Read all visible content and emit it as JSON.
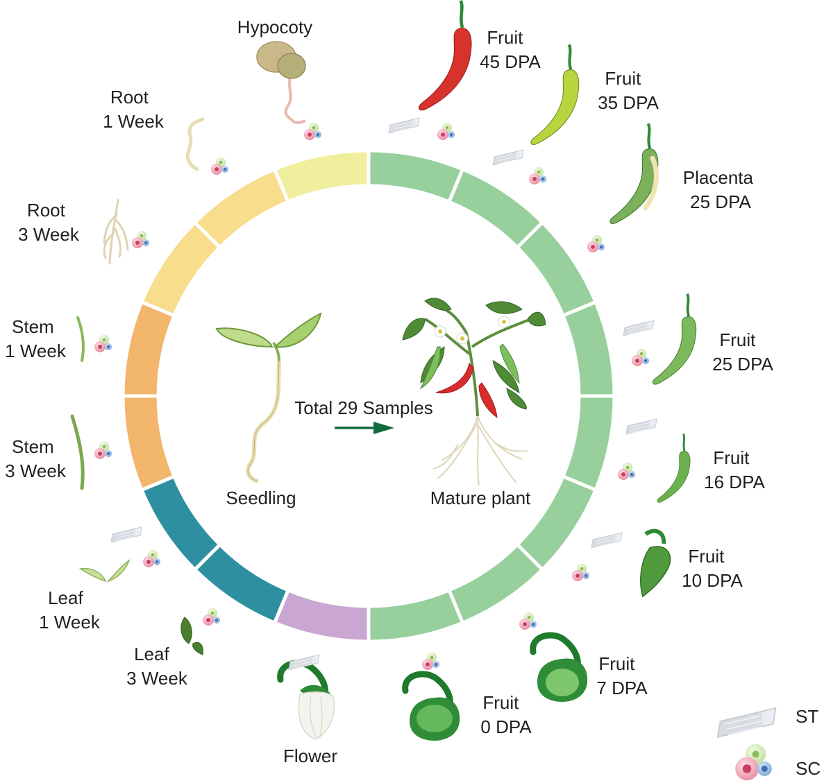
{
  "diagram": {
    "center": {
      "total_label": "Total 29 Samples",
      "seedling_label": "Seedling",
      "mature_label": "Mature plant"
    },
    "samples": [
      {
        "id": "hypocoty",
        "lines": [
          "Hypocoty"
        ]
      },
      {
        "id": "root-1-week",
        "lines": [
          "Root",
          "1 Week"
        ]
      },
      {
        "id": "root-3-week",
        "lines": [
          "Root",
          "3 Week"
        ]
      },
      {
        "id": "stem-1-week",
        "lines": [
          "Stem",
          "1 Week"
        ]
      },
      {
        "id": "stem-3-week",
        "lines": [
          "Stem",
          "3 Week"
        ]
      },
      {
        "id": "leaf-1-week",
        "lines": [
          "Leaf",
          "1 Week"
        ]
      },
      {
        "id": "leaf-3-week",
        "lines": [
          "Leaf",
          "3 Week"
        ]
      },
      {
        "id": "flower",
        "lines": [
          "Flower"
        ]
      },
      {
        "id": "fruit-0-dpa",
        "lines": [
          "Fruit",
          "0 DPA"
        ]
      },
      {
        "id": "fruit-7-dpa",
        "lines": [
          "Fruit",
          "7 DPA"
        ]
      },
      {
        "id": "fruit-10-dpa",
        "lines": [
          "Fruit",
          "10 DPA"
        ]
      },
      {
        "id": "fruit-16-dpa",
        "lines": [
          "Fruit",
          "16 DPA"
        ]
      },
      {
        "id": "fruit-25-dpa",
        "lines": [
          "Fruit",
          "25 DPA"
        ]
      },
      {
        "id": "placenta-25-dpa",
        "lines": [
          "Placenta",
          "25 DPA"
        ]
      },
      {
        "id": "fruit-35-dpa",
        "lines": [
          "Fruit",
          "35 DPA"
        ]
      },
      {
        "id": "fruit-45-dpa",
        "lines": [
          "Fruit",
          "45 DPA"
        ]
      }
    ],
    "legend": [
      {
        "id": "st",
        "label": "ST",
        "icon": "slide-icon"
      },
      {
        "id": "sc",
        "label": "SC",
        "icon": "cells-icon"
      }
    ],
    "ring_colors": {
      "seedling_yellow": "#f0ef9d",
      "yellow": "#f7dd8c",
      "orange": "#f2b56c",
      "teal": "#2e8fa0",
      "purple": "#c9a7d2",
      "green": "#97cf9d"
    }
  }
}
